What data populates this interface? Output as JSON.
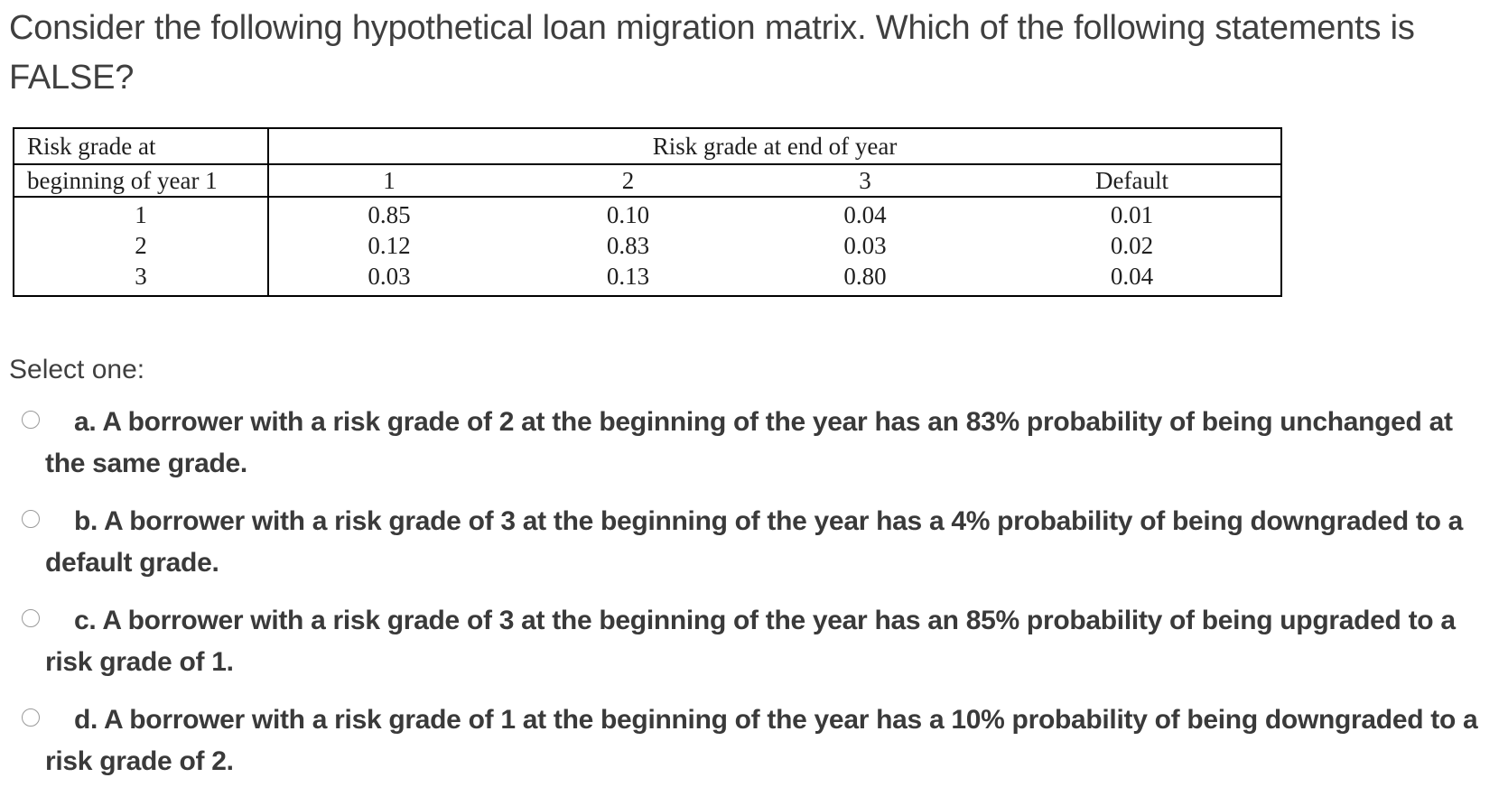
{
  "question": {
    "text": "Consider the following hypothetical loan migration matrix. Which of the following statements is FALSE?"
  },
  "matrix": {
    "row_header_line1": "Risk grade at",
    "row_header_line2": "beginning of year 1",
    "col_group_title": "Risk grade at end of year",
    "columns": [
      "1",
      "2",
      "3",
      "Default"
    ],
    "rows": [
      {
        "grade": "1",
        "values": [
          "0.85",
          "0.10",
          "0.04",
          "0.01"
        ]
      },
      {
        "grade": "2",
        "values": [
          "0.12",
          "0.83",
          "0.03",
          "0.02"
        ]
      },
      {
        "grade": "3",
        "values": [
          "0.03",
          "0.13",
          "0.80",
          "0.04"
        ]
      }
    ]
  },
  "select_label": "Select one:",
  "options": [
    {
      "text": "a. A borrower with a risk grade of 2 at the beginning of the year has an 83% probability of being unchanged at the same grade.",
      "selected": false
    },
    {
      "text": "b. A borrower with a risk grade of 3 at the beginning of the year has a 4% probability of being downgraded to a default grade.",
      "selected": false
    },
    {
      "text": "c. A borrower with a risk grade of 3 at the beginning of the year has an 85% probability of being upgraded to a risk grade of 1.",
      "selected": false
    },
    {
      "text": "d. A borrower with a risk grade of 1 at the beginning of the year has a 10% probability of being downgraded to a risk grade of 2.",
      "selected": false
    }
  ]
}
